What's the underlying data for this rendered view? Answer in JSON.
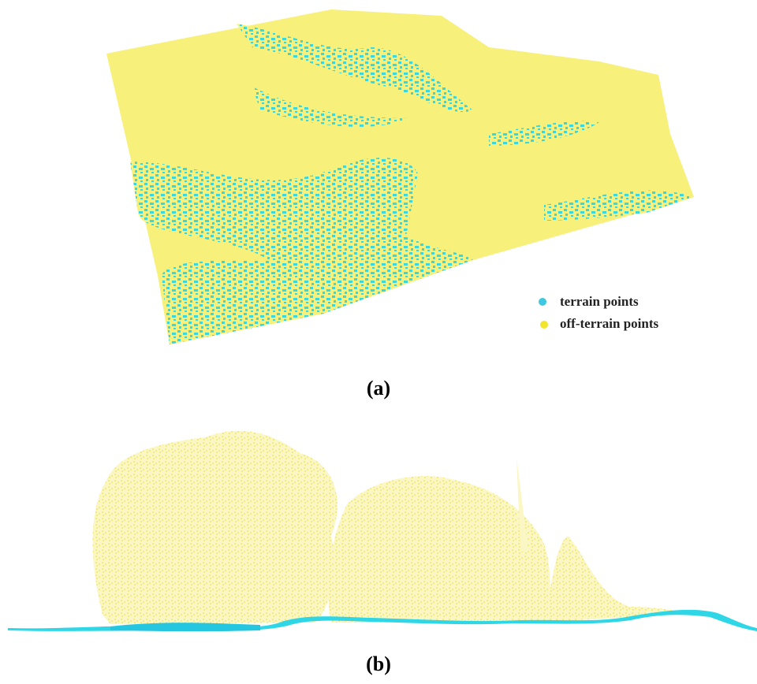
{
  "panels": [
    {
      "caption": "(a)",
      "legend": [
        {
          "label": "terrain points"
        },
        {
          "label": "off-terrain points"
        }
      ]
    },
    {
      "caption": "(b)"
    }
  ]
}
